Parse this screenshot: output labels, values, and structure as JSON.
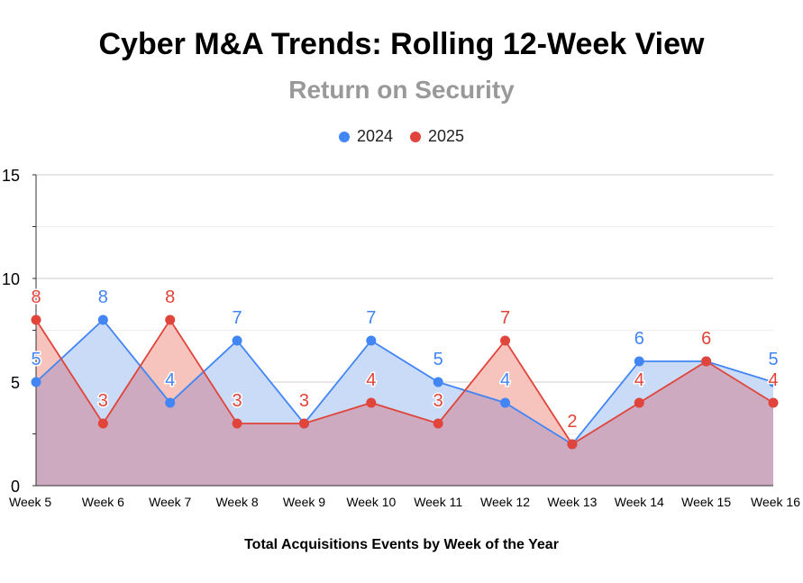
{
  "chart_data": {
    "type": "area",
    "title": "Cyber M&A Trends: Rolling 12-Week View",
    "subtitle": "Return on Security",
    "xlabel": "Total Acquisitions Events by Week of the Year",
    "ylabel": "",
    "ylim": [
      0,
      15
    ],
    "yticks": [
      0,
      5,
      10,
      15
    ],
    "categories": [
      "Week 5",
      "Week 6",
      "Week 7",
      "Week 8",
      "Week 9",
      "Week 10",
      "Week 11",
      "Week 12",
      "Week 13",
      "Week 14",
      "Week 15",
      "Week 16"
    ],
    "legend_position": "top-center",
    "grid": true,
    "series": [
      {
        "name": "2024",
        "color": "#4285f4",
        "fill": "#c9dbf6",
        "values": [
          5,
          8,
          4,
          7,
          3,
          7,
          5,
          4,
          2,
          6,
          6,
          5
        ]
      },
      {
        "name": "2025",
        "color": "#e0443a",
        "fill": "#f7c4bd",
        "values": [
          8,
          3,
          8,
          3,
          3,
          4,
          3,
          7,
          2,
          4,
          6,
          4
        ]
      }
    ],
    "overlap_fill": "#cdaabf"
  }
}
